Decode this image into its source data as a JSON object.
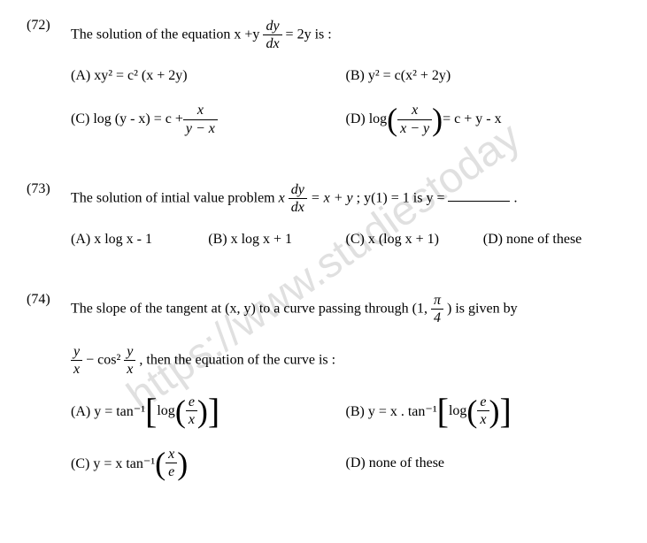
{
  "watermark": "https://www.studiestoday",
  "q72": {
    "num": "(72)",
    "stem_pre": "The solution of the equation x +y",
    "stem_frac_num": "dy",
    "stem_frac_den": "dx",
    "stem_post": " = 2y is :",
    "optA": "(A) xy² = c² (x + 2y)",
    "optB": "(B) y² = c(x² + 2y)",
    "optC_pre": "(C) log (y - x) = c + ",
    "optC_frac_num": "x",
    "optC_frac_den": "y − x",
    "optD_pre": "(D) log ",
    "optD_frac_num": "x",
    "optD_frac_den": "x − y",
    "optD_post": " = c + y - x"
  },
  "q73": {
    "num": "(73)",
    "stem_pre": "The solution of intial value problem ",
    "stem_x": "x",
    "stem_frac_num": "dy",
    "stem_frac_den": "dx",
    "stem_mid": " = x + y",
    "stem_cond": " ; y(1) = 1 is y = ",
    "stem_post": " .",
    "optA": "(A) x log x - 1",
    "optB": "(B) x log x + 1",
    "optC": "(C) x (log x + 1)",
    "optD": "(D) none of these"
  },
  "q74": {
    "num": "(74)",
    "stem_pre": "The slope of the tangent at (x, y) to a curve passing through (1,",
    "stem_frac_num": "π",
    "stem_frac_den": "4",
    "stem_post": ") is given by",
    "line2_f1_num": "y",
    "line2_f1_den": "x",
    "line2_mid": " − cos² ",
    "line2_f2_num": "y",
    "line2_f2_den": "x",
    "line2_post": ", then the equation of the curve is :",
    "optA_pre": "(A) y = tan⁻¹ ",
    "optA_log": "log",
    "optA_frac_num": "e",
    "optA_frac_den": "x",
    "optB_pre": "(B) y = x . tan⁻¹ ",
    "optB_log": "log",
    "optB_frac_num": "e",
    "optB_frac_den": "x",
    "optC_pre": "(C) y = x tan⁻¹ ",
    "optC_frac_num": "x",
    "optC_frac_den": "e",
    "optD": "(D) none of these"
  }
}
